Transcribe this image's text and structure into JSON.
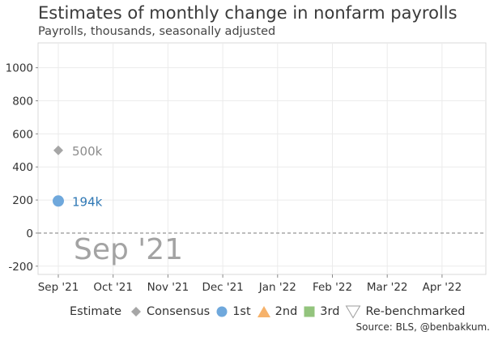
{
  "title": "Estimates of monthly change in nonfarm payrolls",
  "subtitle": "Payrolls, thousands, seasonally adjusted",
  "source": "Source: BLS, @benbakkum.",
  "legend": {
    "title": "Estimate",
    "items": [
      {
        "label": "Consensus",
        "shape": "diamond",
        "color": "#a6a6a6"
      },
      {
        "label": "1st",
        "shape": "circle",
        "color": "#6fa8dc"
      },
      {
        "label": "2nd",
        "shape": "triangle",
        "color": "#f6b26b"
      },
      {
        "label": "3rd",
        "shape": "square",
        "color": "#93c47d"
      },
      {
        "label": "Re-benchmarked",
        "shape": "triangle-down-outline",
        "color": "#9e9e9e"
      }
    ]
  },
  "chart_data": {
    "type": "scatter",
    "title": "Estimates of monthly change in nonfarm payrolls",
    "subtitle": "Payrolls, thousands, seasonally adjusted",
    "categories": [
      "Sep '21",
      "Oct '21",
      "Nov '21",
      "Dec '21",
      "Jan '22",
      "Feb '22",
      "Mar '22",
      "Apr '22"
    ],
    "ylim": [
      -250,
      1150
    ],
    "yticks": [
      -200,
      0,
      200,
      400,
      600,
      800,
      1000
    ],
    "grid": true,
    "zero_line": "dashed",
    "series": [
      {
        "name": "Consensus",
        "color": "#a6a6a6",
        "points": [
          {
            "x": "Sep '21",
            "y": 500,
            "label": "500k"
          }
        ]
      },
      {
        "name": "1st",
        "color": "#6fa8dc",
        "label_color": "#2f78b5",
        "points": [
          {
            "x": "Sep '21",
            "y": 194,
            "label": "194k"
          }
        ]
      },
      {
        "name": "2nd",
        "color": "#f6b26b",
        "points": []
      },
      {
        "name": "3rd",
        "color": "#93c47d",
        "points": []
      },
      {
        "name": "Re-benchmarked",
        "color": "#9e9e9e",
        "points": []
      }
    ],
    "annotation": {
      "text": "Sep '21",
      "color": "#a3a3a3"
    }
  }
}
